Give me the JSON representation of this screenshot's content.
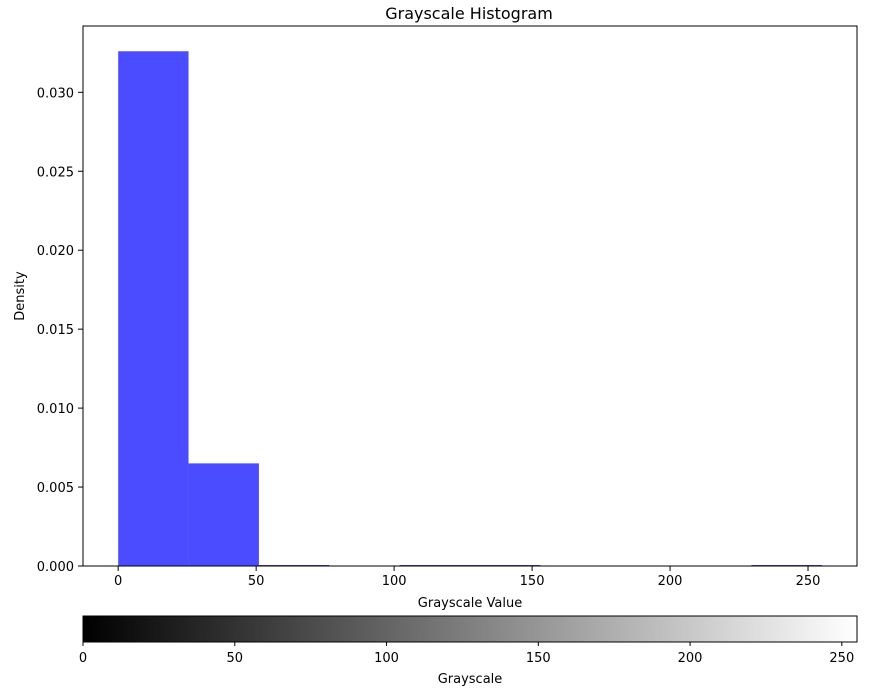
{
  "chart_data": {
    "type": "bar",
    "title": "Grayscale Histogram",
    "xlabel": "Grayscale Value",
    "ylabel": "Density",
    "bin_edges": [
      0,
      25.5,
      51,
      76.5,
      102,
      127.5,
      153,
      178.5,
      204,
      229.5,
      255
    ],
    "values": [
      0.0326,
      0.0065,
      6e-05,
      0,
      4e-05,
      4e-05,
      0,
      0,
      0,
      4e-05
    ],
    "bar_color": "#4b4bff",
    "xlim": [
      -12.75,
      267.75
    ],
    "ylim": [
      0,
      0.0342
    ],
    "xticks": [
      0,
      50,
      100,
      150,
      200,
      250
    ],
    "yticks": [
      0.0,
      0.005,
      0.01,
      0.015,
      0.02,
      0.025,
      0.03
    ],
    "yticks_labels": [
      "0.000",
      "0.005",
      "0.010",
      "0.015",
      "0.020",
      "0.025",
      "0.030"
    ],
    "grid": false,
    "colorbar": {
      "label": "Grayscale",
      "range": [
        0,
        255
      ],
      "ticks": [
        0,
        50,
        100,
        150,
        200,
        250
      ],
      "colormap": "gray",
      "start_color": "#000000",
      "end_color": "#ffffff"
    }
  }
}
